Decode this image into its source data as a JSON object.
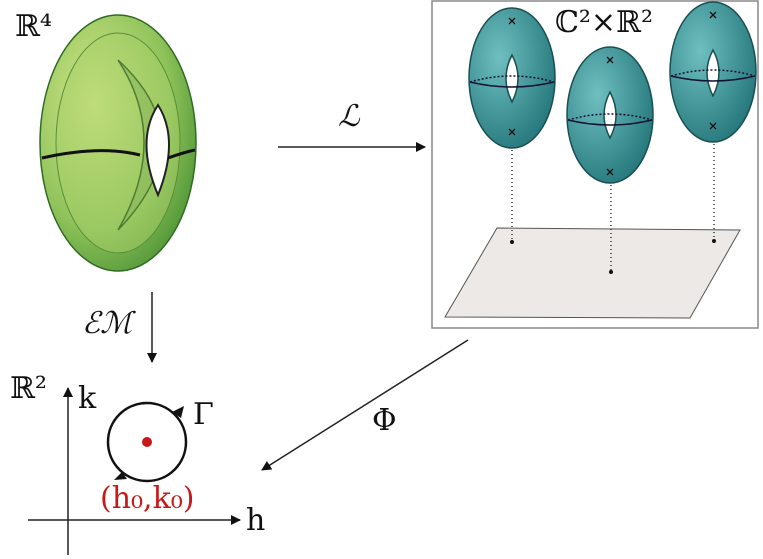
{
  "labels": {
    "r4": "ℝ⁴",
    "lagrangian": "ℒ",
    "c2r2": "ℂ²×ℝ²",
    "em": "ℰℳ",
    "r2": "ℝ²",
    "k": "k",
    "gamma": "Γ",
    "phi": "Φ",
    "point": "(h₀,k₀)",
    "h": "h"
  }
}
